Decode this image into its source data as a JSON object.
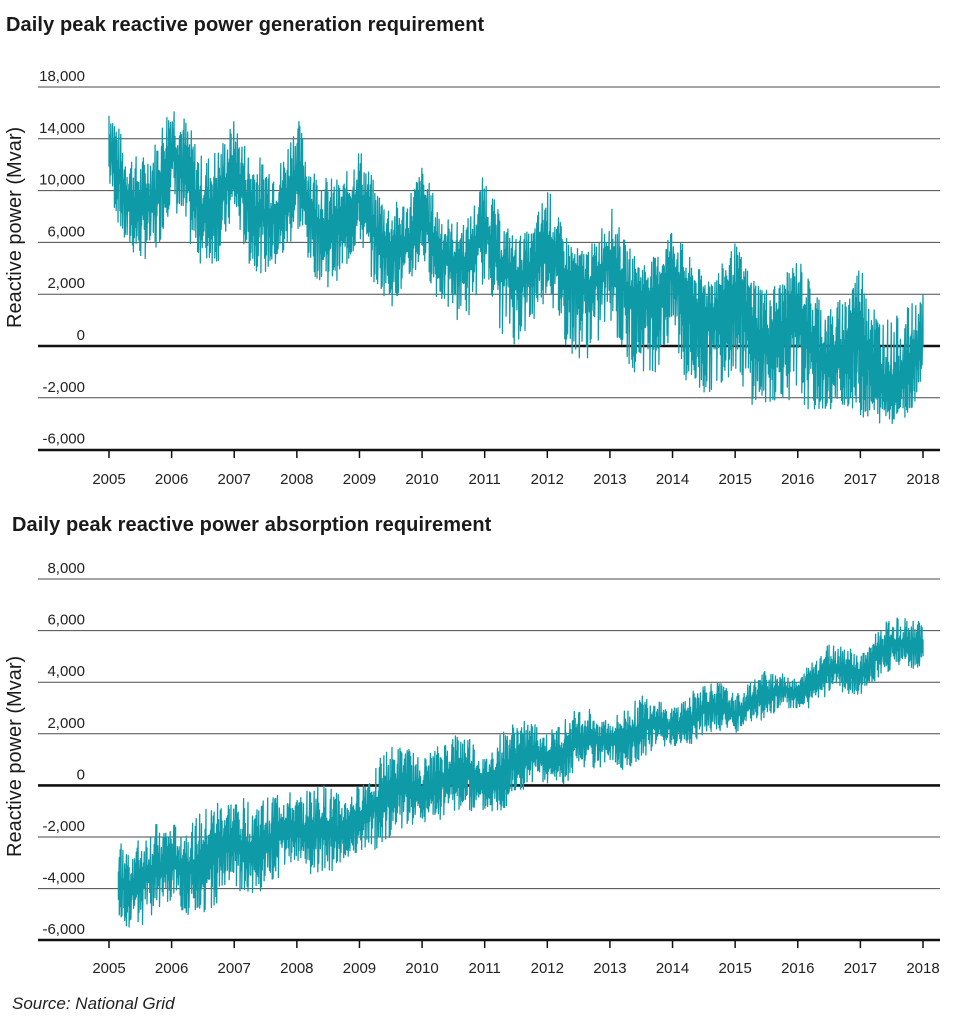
{
  "colors": {
    "series": "#0f9aa8",
    "grid": "#4a4a4a",
    "zero": "#111111"
  },
  "source": "Source: National Grid",
  "chart_data": [
    {
      "type": "line",
      "title": "Daily peak reactive power generation requirement",
      "ylabel": "Reactive power (Mvar)",
      "xlabel": "",
      "x_ticks": [
        "2005",
        "2006",
        "2007",
        "2008",
        "2009",
        "2010",
        "2011",
        "2012",
        "2013",
        "2014",
        "2015",
        "2016",
        "2017",
        "2018"
      ],
      "y_ticks": [
        "18,000",
        "14,000",
        "10,000",
        "6,000",
        "2,000",
        "0",
        "-2,000",
        "-6,000"
      ],
      "xlim": [
        2005,
        2018
      ],
      "grid": "horizontal",
      "series": [
        {
          "x": [
            2005.0,
            2005.25,
            2005.5,
            2005.75,
            2006.0,
            2006.25,
            2006.5,
            2006.75,
            2007.0,
            2007.25,
            2007.5,
            2007.75,
            2008.0,
            2008.25,
            2008.5,
            2008.75,
            2009.0,
            2009.25,
            2009.5,
            2009.75,
            2010.0,
            2010.25,
            2010.5,
            2010.75,
            2011.0,
            2011.25,
            2011.5,
            2011.75,
            2012.0,
            2012.25,
            2012.5,
            2012.75,
            2013.0,
            2013.25,
            2013.5,
            2013.75,
            2014.0,
            2014.25,
            2014.5,
            2014.75,
            2015.0,
            2015.25,
            2015.5,
            2015.75,
            2016.0,
            2016.25,
            2016.5,
            2016.75,
            2017.0,
            2017.25,
            2017.5,
            2017.75,
            2018.0
          ],
          "upper": [
            17500,
            13500,
            12500,
            14000,
            17500,
            15500,
            12500,
            13500,
            15500,
            13000,
            12500,
            12500,
            16000,
            12000,
            11000,
            11000,
            13500,
            10500,
            9000,
            9500,
            12000,
            9000,
            7500,
            8000,
            11500,
            8000,
            6500,
            7000,
            10500,
            7000,
            5500,
            6000,
            9000,
            6000,
            4500,
            5000,
            7500,
            5000,
            3500,
            4000,
            6000,
            3500,
            2500,
            3000,
            5000,
            2500,
            1500,
            2000,
            4500,
            1500,
            1000,
            1500,
            2000
          ],
          "lower": [
            10000,
            5500,
            4500,
            5000,
            9000,
            6000,
            4000,
            4500,
            8000,
            4000,
            3500,
            4000,
            7000,
            3500,
            2500,
            3500,
            6000,
            2500,
            1500,
            2000,
            4500,
            1500,
            1000,
            1000,
            3000,
            500,
            0,
            500,
            2000,
            0,
            -500,
            -500,
            1000,
            -1000,
            -1000,
            -1000,
            0,
            -2000,
            -2000,
            -1500,
            -1000,
            -2500,
            -2500,
            -2000,
            -2500,
            -3000,
            -3000,
            -2500,
            -3500,
            -4000,
            -4000,
            -3500,
            -1000
          ]
        }
      ]
    },
    {
      "type": "line",
      "title": "Daily peak reactive power absorption requirement",
      "ylabel": "Reactive power (Mvar)",
      "xlabel": "",
      "x_ticks": [
        "2005",
        "2006",
        "2007",
        "2008",
        "2009",
        "2010",
        "2011",
        "2012",
        "2013",
        "2014",
        "2015",
        "2016",
        "2017",
        "2018"
      ],
      "y_ticks": [
        "8,000",
        "6,000",
        "4,000",
        "2,000",
        "0",
        "-2,000",
        "-4,000",
        "-6,000"
      ],
      "xlim": [
        2005,
        2018
      ],
      "grid": "horizontal",
      "series": [
        {
          "x": [
            2005.15,
            2005.25,
            2005.5,
            2005.75,
            2006.0,
            2006.25,
            2006.5,
            2006.75,
            2007.0,
            2007.25,
            2007.5,
            2007.75,
            2008.0,
            2008.25,
            2008.5,
            2008.75,
            2009.0,
            2009.25,
            2009.5,
            2009.75,
            2010.0,
            2010.25,
            2010.5,
            2010.75,
            2011.0,
            2011.25,
            2011.5,
            2011.75,
            2012.0,
            2012.25,
            2012.5,
            2012.75,
            2013.0,
            2013.25,
            2013.5,
            2013.75,
            2014.0,
            2014.25,
            2014.5,
            2014.75,
            2015.0,
            2015.25,
            2015.5,
            2015.75,
            2016.0,
            2016.25,
            2016.5,
            2016.75,
            2017.0,
            2017.25,
            2017.5,
            2017.75,
            2018.0
          ],
          "upper": [
            -2000,
            -2500,
            -2000,
            -1500,
            -1500,
            -1500,
            -1000,
            -500,
            -500,
            -500,
            -500,
            0,
            -500,
            0,
            0,
            -500,
            0,
            1000,
            1500,
            1500,
            1000,
            1500,
            2000,
            2000,
            1000,
            2000,
            2500,
            2500,
            2000,
            2500,
            3000,
            3000,
            2500,
            3000,
            3500,
            3500,
            3000,
            3500,
            4000,
            4000,
            3500,
            4000,
            4500,
            4500,
            4000,
            5000,
            5500,
            5500,
            5000,
            6000,
            6500,
            6500,
            6500
          ],
          "upper_note": "",
          "lower": [
            -5000,
            -5500,
            -5500,
            -5000,
            -4500,
            -5000,
            -5000,
            -4500,
            -4000,
            -4500,
            -4000,
            -3500,
            -3000,
            -3500,
            -3500,
            -3000,
            -2500,
            -2500,
            -2000,
            -1500,
            -1500,
            -1500,
            -1000,
            -1000,
            -1000,
            -1000,
            -500,
            0,
            0,
            0,
            500,
            500,
            1000,
            500,
            1000,
            1500,
            1500,
            1500,
            2000,
            2000,
            2000,
            2500,
            2500,
            3000,
            3000,
            3000,
            3500,
            3500,
            3500,
            4000,
            4500,
            4500,
            4500
          ]
        }
      ]
    }
  ]
}
